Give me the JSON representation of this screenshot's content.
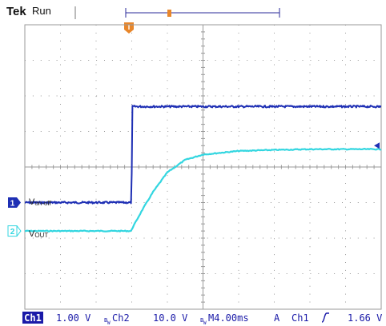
{
  "header": {
    "brand": "Tek",
    "status": "Run",
    "trigger_marker_letter": "T"
  },
  "traces": {
    "von_off": {
      "main": "V",
      "sub": "on-off"
    },
    "vout": {
      "main": "V",
      "sub": "OUT"
    }
  },
  "status_bar": {
    "ch1": "Ch1",
    "ch1_scale": "1.00 V",
    "ch2": "Ch2",
    "ch2_scale": "10.0 V",
    "timebase": "M4.00ms",
    "trigger_mode": "A",
    "trigger_source": "Ch1",
    "trigger_level": "1.66 V",
    "bw_mark": "B_W"
  },
  "colors": {
    "ch1": "#1e2fb4",
    "ch2": "#33d6e0",
    "trigger": "#e8862a",
    "grid": "#9a9a9a",
    "status_bg": "#1a1aa8"
  },
  "chart_data": {
    "type": "line",
    "title": "",
    "grid": true,
    "x_units": "divisions",
    "y_units": "divisions",
    "xlim": [
      0,
      10
    ],
    "ylim": [
      -4,
      4
    ],
    "time_per_div_ms": 4.0,
    "series": [
      {
        "name": "Von-off",
        "channel": "Ch1",
        "volts_per_div": 1.0,
        "x": [
          0,
          2.98,
          3.0,
          3.02,
          10
        ],
        "y": [
          -1.0,
          -1.0,
          -0.2,
          1.7,
          1.7
        ]
      },
      {
        "name": "Vout",
        "channel": "Ch2",
        "volts_per_div": 10.0,
        "x": [
          0,
          2.98,
          3.0,
          3.3,
          3.6,
          4.0,
          4.5,
          5.0,
          5.5,
          6.0,
          7.0,
          8.0,
          9.0,
          10.0
        ],
        "y": [
          -1.8,
          -1.8,
          -1.75,
          -1.2,
          -0.7,
          -0.15,
          0.2,
          0.35,
          0.4,
          0.45,
          0.48,
          0.5,
          0.5,
          0.5
        ]
      }
    ],
    "markers": {
      "ch1_ground_div": -1.0,
      "ch2_ground_div": -1.8,
      "trigger_level_div": 0.6,
      "trigger_time_div": 3.0
    }
  }
}
